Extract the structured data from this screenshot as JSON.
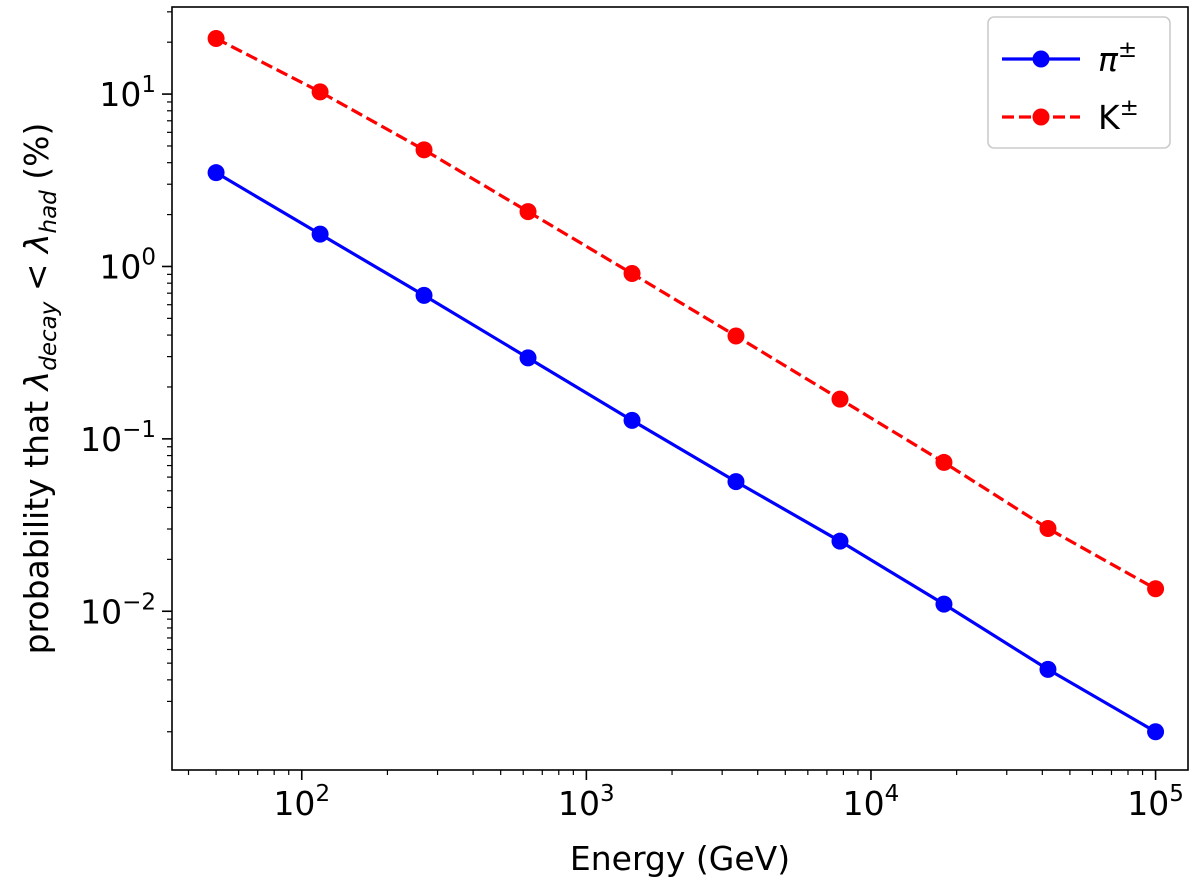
{
  "chart_data": {
    "type": "line",
    "title": "",
    "xlabel": "Energy (GeV)",
    "ylabel": {
      "prefix": "probability that ",
      "lambda": "λ",
      "sub1": "decay",
      "mid": " < ",
      "sub2": "had",
      "suffix": " (%)"
    },
    "x_scale": "log",
    "y_scale": "log",
    "xlim": [
      35,
      130000
    ],
    "ylim": [
      0.0012,
      32
    ],
    "grid": false,
    "legend_position": "top-right",
    "x_ticks": [
      {
        "value": 100,
        "base": "10",
        "exp": "2"
      },
      {
        "value": 1000,
        "base": "10",
        "exp": "3"
      },
      {
        "value": 10000,
        "base": "10",
        "exp": "4"
      },
      {
        "value": 100000,
        "base": "10",
        "exp": "5"
      }
    ],
    "y_ticks": [
      {
        "value": 0.01,
        "base": "10",
        "exp": "−2"
      },
      {
        "value": 0.1,
        "base": "10",
        "exp": "−1"
      },
      {
        "value": 1,
        "base": "10",
        "exp": "0"
      },
      {
        "value": 10,
        "base": "10",
        "exp": "1"
      }
    ],
    "x": [
      50,
      116.0,
      268.9,
      623.8,
      1447,
      3355,
      7783,
      18050,
      41870,
      100000
    ],
    "series": [
      {
        "name": "π",
        "name_sup": "±",
        "name_italic": true,
        "color": "#0000ff",
        "linestyle": "solid",
        "marker": "circle",
        "values": [
          3.5,
          1.54,
          0.68,
          0.295,
          0.128,
          0.0565,
          0.0255,
          0.011,
          0.0046,
          0.002
        ]
      },
      {
        "name": "K",
        "name_sup": "±",
        "name_italic": false,
        "color": "#ff0000",
        "linestyle": "dashed",
        "marker": "circle",
        "values": [
          21,
          10.3,
          4.75,
          2.08,
          0.91,
          0.395,
          0.17,
          0.073,
          0.0302,
          0.0135
        ]
      }
    ]
  }
}
